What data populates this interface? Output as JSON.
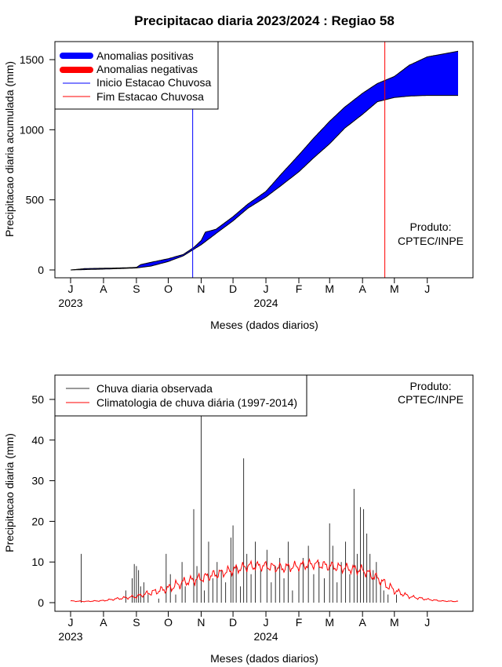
{
  "chart_data": [
    {
      "type": "area",
      "title": "Precipitacao diaria 2023/2024 : Regiao 58",
      "xlabel": "Meses (dados diarios)",
      "ylabel": "Precipitacao diaria acumulada (mm)",
      "x_start": "2023-07-01",
      "x_ticks": [
        "J",
        "A",
        "S",
        "O",
        "N",
        "D",
        "J",
        "F",
        "M",
        "A",
        "M",
        "J"
      ],
      "year_labels": [
        {
          "text": "2023",
          "at": "2023-07-01"
        },
        {
          "text": "2024",
          "at": "2024-01-01"
        }
      ],
      "ylim": [
        0,
        1600
      ],
      "y_ticks": [
        0,
        500,
        1000,
        1500
      ],
      "legend": [
        {
          "label": "Anomalias positivas",
          "color": "#0000ff",
          "style": "thick"
        },
        {
          "label": "Anomalias negativas",
          "color": "#ff0000",
          "style": "thick"
        },
        {
          "label": "Inicio Estacao Chuvosa",
          "color": "#0000ff",
          "style": "thin"
        },
        {
          "label": "Fim Estacao Chuvosa",
          "color": "#ff0000",
          "style": "thin"
        }
      ],
      "legend_position": "top-left",
      "annotation": [
        "Produto:",
        "CPTEC/INPE"
      ],
      "inicio_estacao_chuvosa": "2023-10-24",
      "fim_estacao_chuvosa": "2024-04-22",
      "series": [
        {
          "name": "Observada",
          "points": [
            [
              "2023-07-01",
              0
            ],
            [
              "2023-07-15",
              10
            ],
            [
              "2023-08-01",
              12
            ],
            [
              "2023-08-15",
              14
            ],
            [
              "2023-09-01",
              18
            ],
            [
              "2023-09-05",
              38
            ],
            [
              "2023-09-15",
              55
            ],
            [
              "2023-10-01",
              80
            ],
            [
              "2023-10-15",
              110
            ],
            [
              "2023-10-25",
              160
            ],
            [
              "2023-11-01",
              210
            ],
            [
              "2023-11-05",
              270
            ],
            [
              "2023-11-15",
              290
            ],
            [
              "2023-12-01",
              380
            ],
            [
              "2023-12-15",
              470
            ],
            [
              "2024-01-01",
              560
            ],
            [
              "2024-01-15",
              680
            ],
            [
              "2024-02-01",
              820
            ],
            [
              "2024-02-15",
              940
            ],
            [
              "2024-03-01",
              1060
            ],
            [
              "2024-03-15",
              1160
            ],
            [
              "2024-04-01",
              1260
            ],
            [
              "2024-04-15",
              1330
            ],
            [
              "2024-05-01",
              1380
            ],
            [
              "2024-05-15",
              1460
            ],
            [
              "2024-06-01",
              1520
            ],
            [
              "2024-06-30",
              1560
            ]
          ]
        },
        {
          "name": "Climatologia",
          "points": [
            [
              "2023-07-01",
              0
            ],
            [
              "2023-08-01",
              6
            ],
            [
              "2023-09-01",
              14
            ],
            [
              "2023-09-15",
              28
            ],
            [
              "2023-10-01",
              60
            ],
            [
              "2023-10-15",
              100
            ],
            [
              "2023-11-01",
              180
            ],
            [
              "2023-11-15",
              260
            ],
            [
              "2023-12-01",
              350
            ],
            [
              "2023-12-15",
              440
            ],
            [
              "2024-01-01",
              520
            ],
            [
              "2024-01-15",
              600
            ],
            [
              "2024-02-01",
              700
            ],
            [
              "2024-02-15",
              800
            ],
            [
              "2024-03-01",
              900
            ],
            [
              "2024-03-15",
              1010
            ],
            [
              "2024-04-01",
              1110
            ],
            [
              "2024-04-15",
              1200
            ],
            [
              "2024-05-01",
              1230
            ],
            [
              "2024-05-15",
              1240
            ],
            [
              "2024-06-01",
              1245
            ],
            [
              "2024-06-30",
              1245
            ]
          ]
        }
      ]
    },
    {
      "type": "bar",
      "title": "",
      "xlabel": "Meses (dados diarios)",
      "ylabel": "Precipitacao diaria (mm)",
      "x_start": "2023-07-01",
      "x_ticks": [
        "J",
        "A",
        "S",
        "O",
        "N",
        "D",
        "J",
        "F",
        "M",
        "A",
        "M",
        "J"
      ],
      "year_labels": [
        {
          "text": "2023",
          "at": "2023-07-01"
        },
        {
          "text": "2024",
          "at": "2024-01-01"
        }
      ],
      "ylim": [
        0,
        55
      ],
      "y_ticks": [
        0,
        10,
        20,
        30,
        40,
        50
      ],
      "legend": [
        {
          "label": "Chuva diaria observada",
          "color": "#333333"
        },
        {
          "label": "Climatologia de chuva diária (1997-2014)",
          "color": "#ff0000"
        }
      ],
      "legend_position": "top-left",
      "annotation": [
        "Produto:",
        "CPTEC/INPE"
      ],
      "series": [
        {
          "name": "Chuva diaria observada",
          "points": [
            [
              "2023-07-11",
              12
            ],
            [
              "2023-08-22",
              3
            ],
            [
              "2023-08-28",
              6
            ],
            [
              "2023-08-30",
              9.5
            ],
            [
              "2023-09-01",
              9
            ],
            [
              "2023-09-03",
              8
            ],
            [
              "2023-09-05",
              4
            ],
            [
              "2023-09-08",
              5
            ],
            [
              "2023-09-12",
              2
            ],
            [
              "2023-09-22",
              1
            ],
            [
              "2023-09-29",
              12
            ],
            [
              "2023-10-03",
              7
            ],
            [
              "2023-10-08",
              2
            ],
            [
              "2023-10-14",
              10
            ],
            [
              "2023-10-17",
              4
            ],
            [
              "2023-10-25",
              23
            ],
            [
              "2023-10-28",
              9
            ],
            [
              "2023-11-01",
              47
            ],
            [
              "2023-11-04",
              3
            ],
            [
              "2023-11-08",
              15
            ],
            [
              "2023-11-12",
              6
            ],
            [
              "2023-11-16",
              10
            ],
            [
              "2023-11-20",
              8
            ],
            [
              "2023-11-24",
              5
            ],
            [
              "2023-11-29",
              16
            ],
            [
              "2023-12-01",
              19
            ],
            [
              "2023-12-04",
              9
            ],
            [
              "2023-12-08",
              4
            ],
            [
              "2023-12-11",
              35.5
            ],
            [
              "2023-12-14",
              12
            ],
            [
              "2023-12-18",
              7
            ],
            [
              "2023-12-22",
              15
            ],
            [
              "2023-12-27",
              8
            ],
            [
              "2024-01-02",
              13
            ],
            [
              "2024-01-06",
              5
            ],
            [
              "2024-01-10",
              9
            ],
            [
              "2024-01-14",
              11
            ],
            [
              "2024-01-18",
              6
            ],
            [
              "2024-01-22",
              15
            ],
            [
              "2024-01-26",
              3
            ],
            [
              "2024-02-01",
              8
            ],
            [
              "2024-02-05",
              11
            ],
            [
              "2024-02-10",
              14
            ],
            [
              "2024-02-15",
              7
            ],
            [
              "2024-02-20",
              10
            ],
            [
              "2024-02-25",
              6
            ],
            [
              "2024-03-01",
              19.5
            ],
            [
              "2024-03-04",
              14
            ],
            [
              "2024-03-08",
              5
            ],
            [
              "2024-03-12",
              10
            ],
            [
              "2024-03-16",
              15
            ],
            [
              "2024-03-20",
              7
            ],
            [
              "2024-03-24",
              28
            ],
            [
              "2024-03-27",
              12
            ],
            [
              "2024-03-30",
              23.5
            ],
            [
              "2024-04-02",
              23
            ],
            [
              "2024-04-05",
              17
            ],
            [
              "2024-04-08",
              12
            ],
            [
              "2024-04-11",
              8
            ],
            [
              "2024-04-14",
              10
            ],
            [
              "2024-04-18",
              5
            ],
            [
              "2024-04-21",
              3
            ],
            [
              "2024-04-25",
              2
            ],
            [
              "2024-05-03",
              2
            ]
          ]
        },
        {
          "name": "Climatologia de chuva diária (1997-2014)",
          "type": "line",
          "points": [
            [
              "2023-07-01",
              0.4
            ],
            [
              "2023-07-15",
              0.3
            ],
            [
              "2023-08-01",
              0.5
            ],
            [
              "2023-08-15",
              1
            ],
            [
              "2023-09-01",
              1.5
            ],
            [
              "2023-09-15",
              2.5
            ],
            [
              "2023-10-01",
              3.5
            ],
            [
              "2023-10-15",
              5
            ],
            [
              "2023-11-01",
              6
            ],
            [
              "2023-11-15",
              7
            ],
            [
              "2023-12-01",
              8
            ],
            [
              "2023-12-15",
              9
            ],
            [
              "2024-01-01",
              9
            ],
            [
              "2024-01-15",
              8.5
            ],
            [
              "2024-02-01",
              9
            ],
            [
              "2024-02-15",
              9.5
            ],
            [
              "2024-03-01",
              9
            ],
            [
              "2024-03-15",
              8.5
            ],
            [
              "2024-04-01",
              8
            ],
            [
              "2024-04-15",
              6
            ],
            [
              "2024-05-01",
              3
            ],
            [
              "2024-05-15",
              1.5
            ],
            [
              "2024-06-01",
              0.8
            ],
            [
              "2024-06-15",
              0.4
            ],
            [
              "2024-06-30",
              0.3
            ]
          ]
        }
      ]
    }
  ]
}
